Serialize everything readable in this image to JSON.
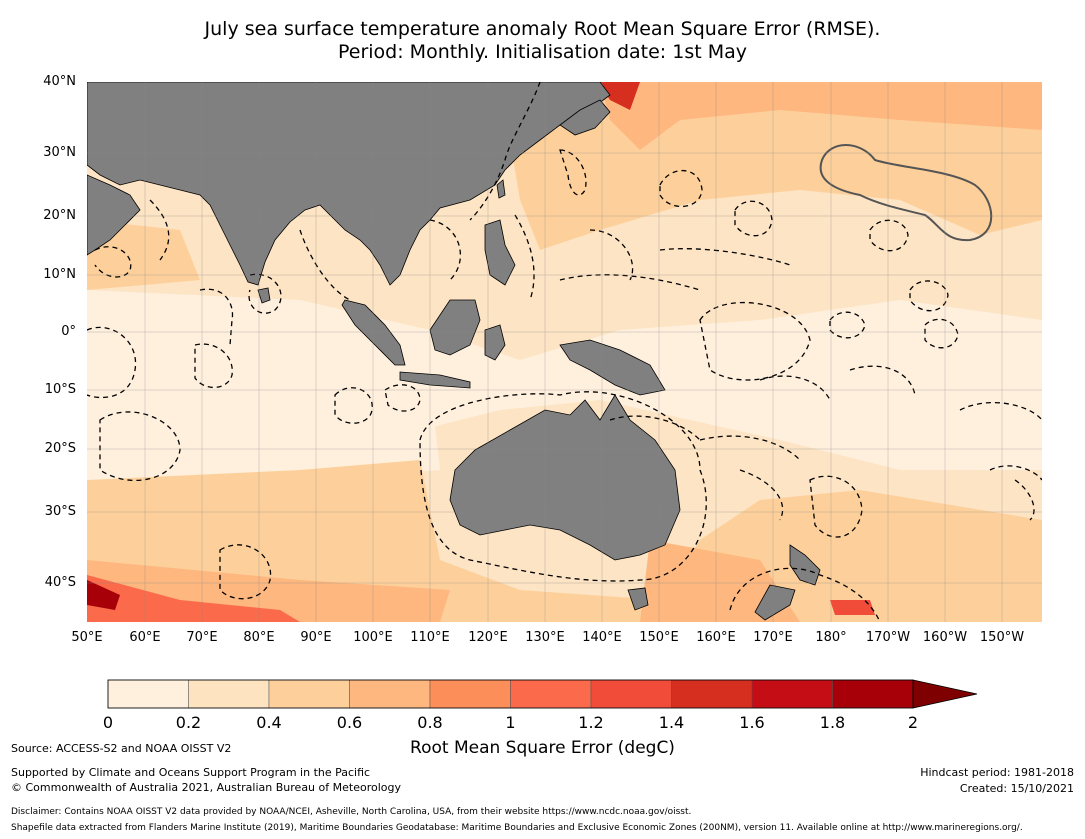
{
  "title": {
    "line1": "July sea surface temperature anomaly Root Mean Square Error (RMSE).",
    "line2": "Period: Monthly. Initialisation date: 1st May"
  },
  "map": {
    "lat_labels": [
      "40°N",
      "30°N",
      "20°N",
      "10°N",
      "0°",
      "10°S",
      "20°S",
      "30°S",
      "40°S"
    ],
    "lon_labels": [
      "50°E",
      "60°E",
      "70°E",
      "80°E",
      "90°E",
      "100°E",
      "110°E",
      "120°E",
      "130°E",
      "140°E",
      "150°E",
      "160°E",
      "170°E",
      "180°",
      "170°W",
      "160°W",
      "150°W"
    ],
    "colors": {
      "ocean_base": "#fde4c4",
      "land": "#808080",
      "boundary": "#000000"
    }
  },
  "colorbar": {
    "label": "Root Mean Square Error (degC)",
    "ticks": [
      "0",
      "0.2",
      "0.4",
      "0.6",
      "0.8",
      "1",
      "1.2",
      "1.4",
      "1.6",
      "1.8",
      "2"
    ],
    "colors": [
      "#fff0de",
      "#fee3c1",
      "#fdd09b",
      "#fdb77f",
      "#fc8e59",
      "#fb6a4a",
      "#f14b3a",
      "#d62f1f",
      "#c40d14",
      "#a70009",
      "#7f0000"
    ]
  },
  "footer": {
    "source": "Source: ACCESS-S2 and NOAA OISST V2",
    "support": "Supported by Climate and Oceans Support Program in the Pacific",
    "copyright": "© Commonwealth of Australia 2021, Australian Bureau of Meteorology",
    "hindcast": "Hindcast period: 1981-2018",
    "created": "Created: 15/10/2021",
    "disclaimer": "Disclaimer: Contains NOAA OISST V2 data provided by NOAA/NCEI, Asheville, North Carolina, USA, from their website https://www.ncdc.noaa.gov/oisst.",
    "shapefile": "Shapefile data extracted from Flanders Marine Institute (2019), Maritime Boundaries Geodatabase: Maritime Boundaries and Exclusive Economic Zones (200NM), version 11. Available online at http://www.marineregions.org/."
  }
}
